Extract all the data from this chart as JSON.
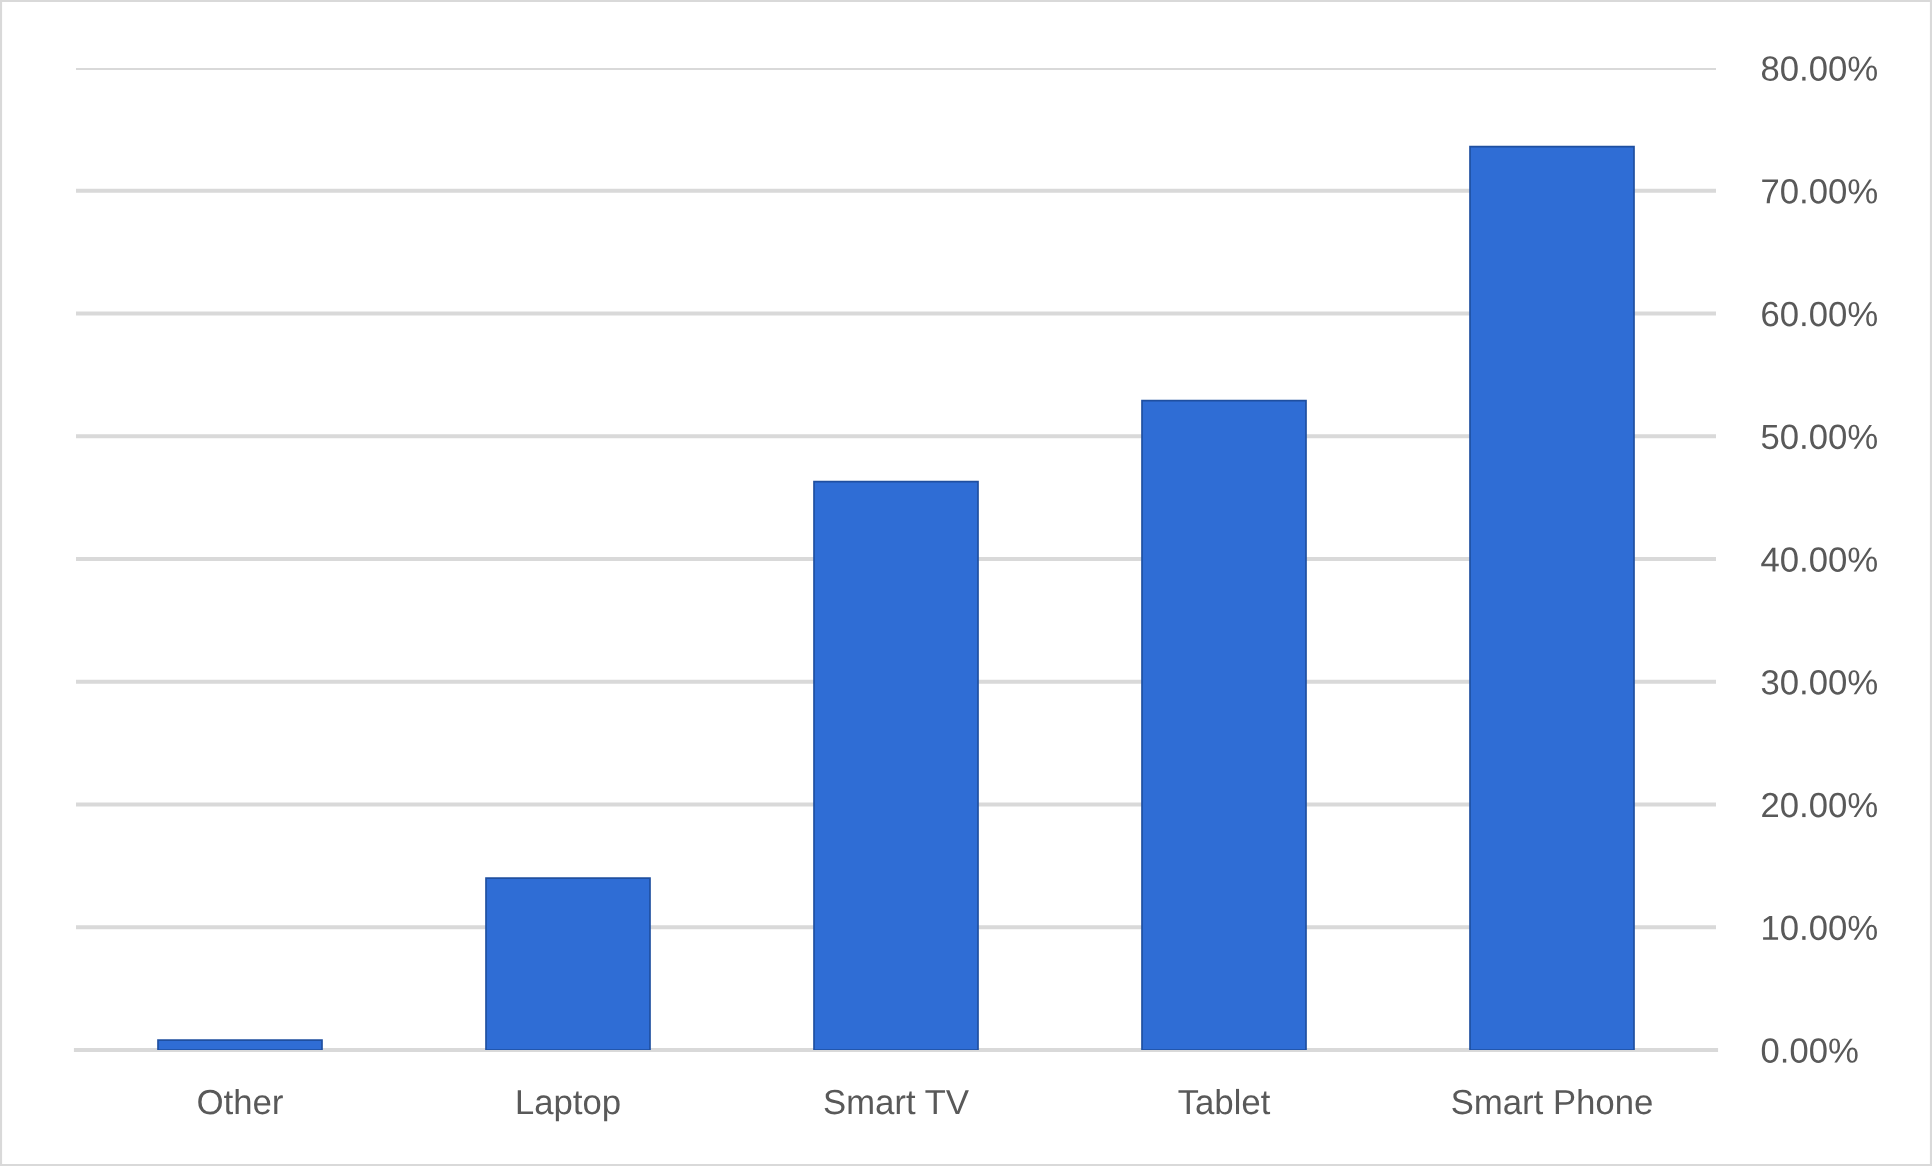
{
  "chart_data": {
    "type": "bar",
    "categories": [
      "Other",
      "Laptop",
      "Smart TV",
      "Tablet",
      "Smart Phone"
    ],
    "values": [
      0.8,
      14.0,
      46.3,
      52.9,
      73.6
    ],
    "color": "#2f6dd5",
    "ylim": [
      0,
      80
    ],
    "yticks": [
      {
        "value": 0,
        "label": "0.00%"
      },
      {
        "value": 10,
        "label": "10.00%"
      },
      {
        "value": 20,
        "label": "20.00%"
      },
      {
        "value": 30,
        "label": "30.00%"
      },
      {
        "value": 40,
        "label": "40.00%"
      },
      {
        "value": 50,
        "label": "50.00%"
      },
      {
        "value": 60,
        "label": "60.00%"
      },
      {
        "value": 70,
        "label": "70.00%"
      },
      {
        "value": 80,
        "label": "80.00%"
      }
    ],
    "grid": "y",
    "legend": false
  }
}
